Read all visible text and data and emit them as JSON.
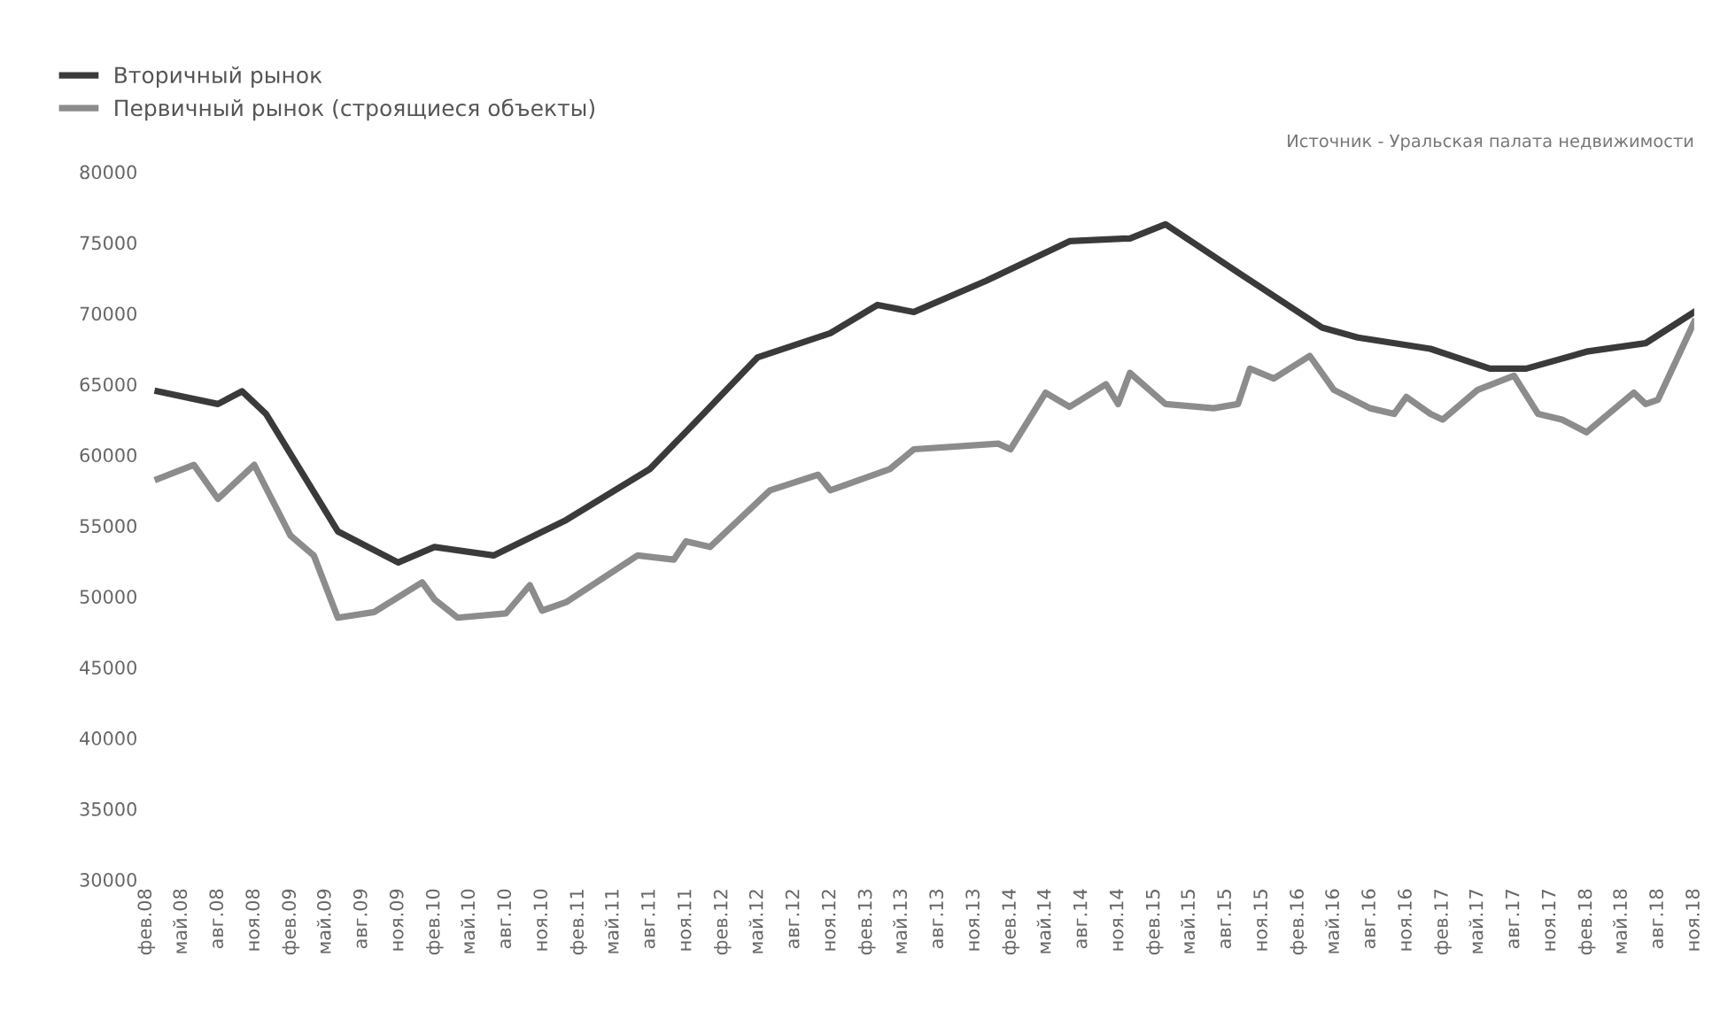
{
  "chart_data": {
    "type": "line",
    "annotations": [
      "Источник - Уральская палата недвижимости"
    ],
    "legend": "top left",
    "grid": false,
    "marker": "none",
    "line_style": "solid",
    "xlim": [
      "2008-02",
      "2018-11"
    ],
    "ylim": [
      30000,
      80000
    ],
    "yticks": [
      30000,
      35000,
      40000,
      45000,
      50000,
      55000,
      60000,
      65000,
      70000,
      75000,
      80000
    ],
    "xticks": [
      {
        "value": "2008-02",
        "label": "фев.08"
      },
      {
        "value": "2008-05",
        "label": "май.08"
      },
      {
        "value": "2008-08",
        "label": "авг.08"
      },
      {
        "value": "2008-11",
        "label": "ноя.08"
      },
      {
        "value": "2009-02",
        "label": "фев.09"
      },
      {
        "value": "2009-05",
        "label": "май.09"
      },
      {
        "value": "2009-08",
        "label": "авг.09"
      },
      {
        "value": "2009-11",
        "label": "ноя.09"
      },
      {
        "value": "2010-02",
        "label": "фев.10"
      },
      {
        "value": "2010-05",
        "label": "май.10"
      },
      {
        "value": "2010-08",
        "label": "авг.10"
      },
      {
        "value": "2010-11",
        "label": "ноя.10"
      },
      {
        "value": "2011-02",
        "label": "фев.11"
      },
      {
        "value": "2011-05",
        "label": "май.11"
      },
      {
        "value": "2011-08",
        "label": "авг.11"
      },
      {
        "value": "2011-11",
        "label": "ноя.11"
      },
      {
        "value": "2012-02",
        "label": "фев.12"
      },
      {
        "value": "2012-05",
        "label": "май.12"
      },
      {
        "value": "2012-08",
        "label": "авг.12"
      },
      {
        "value": "2012-11",
        "label": "ноя.12"
      },
      {
        "value": "2013-02",
        "label": "фев.13"
      },
      {
        "value": "2013-05",
        "label": "май.13"
      },
      {
        "value": "2013-08",
        "label": "авг.13"
      },
      {
        "value": "2013-11",
        "label": "ноя.13"
      },
      {
        "value": "2014-02",
        "label": "фев.14"
      },
      {
        "value": "2014-05",
        "label": "май.14"
      },
      {
        "value": "2014-08",
        "label": "авг.14"
      },
      {
        "value": "2014-11",
        "label": "ноя.14"
      },
      {
        "value": "2015-02",
        "label": "фев.15"
      },
      {
        "value": "2015-05",
        "label": "май.15"
      },
      {
        "value": "2015-08",
        "label": "авг.15"
      },
      {
        "value": "2015-11",
        "label": "ноя.15"
      },
      {
        "value": "2016-02",
        "label": "фев.16"
      },
      {
        "value": "2016-05",
        "label": "май.16"
      },
      {
        "value": "2016-08",
        "label": "авг.16"
      },
      {
        "value": "2016-11",
        "label": "ноя.16"
      },
      {
        "value": "2017-02",
        "label": "фев.17"
      },
      {
        "value": "2017-05",
        "label": "май.17"
      },
      {
        "value": "2017-08",
        "label": "авг.17"
      },
      {
        "value": "2017-11",
        "label": "ноя.17"
      },
      {
        "value": "2018-02",
        "label": "фев.18"
      },
      {
        "value": "2018-05",
        "label": "май.18"
      },
      {
        "value": "2018-08",
        "label": "авг.18"
      },
      {
        "value": "2018-11",
        "label": "ноя.18"
      }
    ],
    "series": [
      {
        "name": "Вторичный рынок",
        "color": "#3a3a3a",
        "x": [
          "2008-03",
          "2008-08",
          "2008-10",
          "2008-12",
          "2009-06",
          "2009-11",
          "2010-02",
          "2010-07",
          "2011-01",
          "2011-08",
          "2011-12",
          "2012-05",
          "2012-11",
          "2013-03",
          "2013-06",
          "2013-12",
          "2014-07",
          "2014-12",
          "2015-03",
          "2015-09",
          "2016-04",
          "2016-07",
          "2017-01",
          "2017-06",
          "2017-09",
          "2018-02",
          "2018-07",
          "2018-11"
        ],
        "values": [
          64500,
          63600,
          64500,
          62900,
          54600,
          52400,
          53500,
          52900,
          55400,
          59000,
          62500,
          66900,
          68600,
          70600,
          70100,
          72300,
          75100,
          75300,
          76300,
          72900,
          69000,
          68300,
          67500,
          66100,
          66100,
          67300,
          67900,
          70100
        ]
      },
      {
        "name": "Первичный рынок (строящиеся объекты)",
        "color": "#8c8c8c",
        "x": [
          "2008-03",
          "2008-06",
          "2008-08",
          "2008-11",
          "2009-02",
          "2009-04",
          "2009-06",
          "2009-09",
          "2010-01",
          "2010-02",
          "2010-04",
          "2010-08",
          "2010-10",
          "2010-11",
          "2011-01",
          "2011-07",
          "2011-10",
          "2011-11",
          "2012-01",
          "2012-06",
          "2012-10",
          "2012-11",
          "2013-04",
          "2013-06",
          "2014-01",
          "2014-02",
          "2014-05",
          "2014-07",
          "2014-10",
          "2014-11",
          "2014-12",
          "2015-03",
          "2015-07",
          "2015-09",
          "2015-10",
          "2015-12",
          "2016-03",
          "2016-05",
          "2016-08",
          "2016-10",
          "2016-11",
          "2017-01",
          "2017-02",
          "2017-05",
          "2017-08",
          "2017-10",
          "2017-12",
          "2018-02",
          "2018-06",
          "2018-07",
          "2018-08",
          "2018-11"
        ],
        "values": [
          58300,
          59300,
          56900,
          59300,
          54300,
          52900,
          48500,
          48900,
          51000,
          49800,
          48500,
          48800,
          50800,
          49000,
          49600,
          52900,
          52600,
          53900,
          53500,
          57500,
          58600,
          57500,
          59000,
          60400,
          60800,
          60400,
          64400,
          63400,
          65000,
          63600,
          65800,
          63600,
          63300,
          63600,
          66100,
          65400,
          67000,
          64600,
          63300,
          62900,
          64100,
          62900,
          62500,
          64600,
          65600,
          62900,
          62500,
          61600,
          64400,
          63600,
          63900,
          69400
        ]
      }
    ]
  }
}
